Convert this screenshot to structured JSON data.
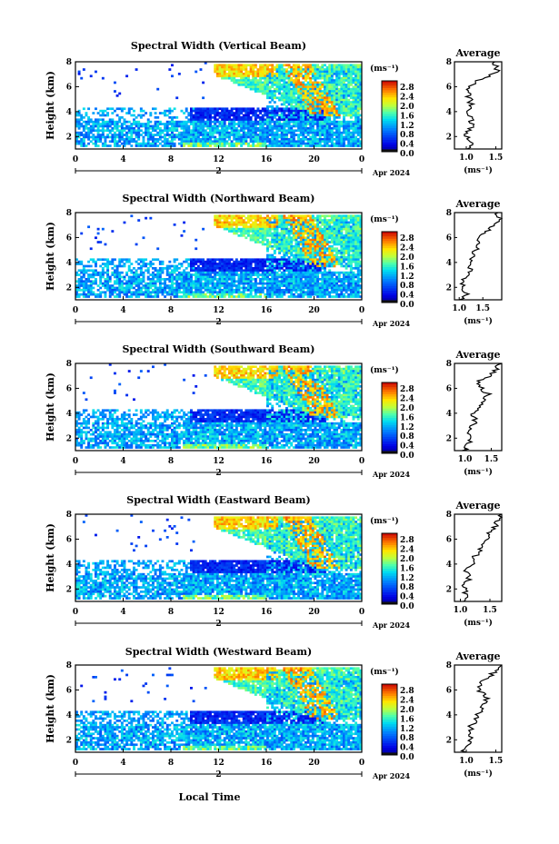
{
  "figure": {
    "xlabel": "Local Time",
    "date_label": "Apr 2024",
    "day_label": "2",
    "colorbar_unit": "(ms⁻¹)",
    "average_title": "Average"
  },
  "chart_data": [
    {
      "type": "heatmap",
      "title": "Spectral Width (Vertical Beam)",
      "ylabel": "Height (km)",
      "x_ticks": [
        "0",
        "4",
        "8",
        "12",
        "16",
        "20",
        "0"
      ],
      "y_ticks": [
        "2",
        "4",
        "6",
        "8"
      ],
      "xlim": [
        0,
        24
      ],
      "ylim": [
        1,
        8
      ],
      "colorbar_ticks": [
        "0.0",
        "0.4",
        "0.8",
        "1.2",
        "1.6",
        "2.0",
        "2.4",
        "2.8"
      ],
      "colorbar_range": [
        0.0,
        3.0
      ],
      "average_profile": {
        "xlim": [
          0.8,
          1.6
        ],
        "x_ticks": [
          "1.0",
          "1.5"
        ],
        "xlabel": "(ms⁻¹)",
        "ylim": [
          1,
          8
        ],
        "y_ticks": [
          "2",
          "4",
          "6",
          "8"
        ],
        "height": [
          1.0,
          1.5,
          2.0,
          2.5,
          3.0,
          3.5,
          4.0,
          4.5,
          5.0,
          5.5,
          6.0,
          6.5,
          7.0,
          7.5,
          8.0
        ],
        "value": [
          1.05,
          1.1,
          1.0,
          1.05,
          1.1,
          1.1,
          1.0,
          1.1,
          1.05,
          1.05,
          1.05,
          1.2,
          1.45,
          1.55,
          1.45
        ]
      }
    },
    {
      "type": "heatmap",
      "title": "Spectral Width (Northward Beam)",
      "ylabel": "Height (km)",
      "x_ticks": [
        "0",
        "4",
        "8",
        "12",
        "16",
        "20",
        "0"
      ],
      "y_ticks": [
        "2",
        "4",
        "6",
        "8"
      ],
      "xlim": [
        0,
        24
      ],
      "ylim": [
        1,
        8
      ],
      "colorbar_ticks": [
        "0.0",
        "0.4",
        "0.8",
        "1.2",
        "1.6",
        "2.0",
        "2.4",
        "2.8"
      ],
      "colorbar_range": [
        0.0,
        3.0
      ],
      "average_profile": {
        "xlim": [
          0.9,
          1.9
        ],
        "x_ticks": [
          "1.0",
          "1.5"
        ],
        "xlabel": "(ms⁻¹)",
        "ylim": [
          1,
          8
        ],
        "y_ticks": [
          "2",
          "4",
          "6",
          "8"
        ],
        "height": [
          1.0,
          1.5,
          2.0,
          2.5,
          3.0,
          3.5,
          4.0,
          4.5,
          5.0,
          5.5,
          6.0,
          6.5,
          7.0,
          7.5,
          8.0
        ],
        "value": [
          1.05,
          1.15,
          1.05,
          1.1,
          1.15,
          1.25,
          1.2,
          1.3,
          1.35,
          1.4,
          1.45,
          1.6,
          1.75,
          1.85,
          1.8
        ]
      }
    },
    {
      "type": "heatmap",
      "title": "Spectral Width (Southward Beam)",
      "ylabel": "Height (km)",
      "x_ticks": [
        "0",
        "4",
        "8",
        "12",
        "16",
        "20",
        "0"
      ],
      "y_ticks": [
        "2",
        "4",
        "6",
        "8"
      ],
      "xlim": [
        0,
        24
      ],
      "ylim": [
        1,
        8
      ],
      "colorbar_ticks": [
        "0.0",
        "0.4",
        "0.8",
        "1.2",
        "1.6",
        "2.0",
        "2.4",
        "2.8"
      ],
      "colorbar_range": [
        0.0,
        3.0
      ],
      "average_profile": {
        "xlim": [
          0.8,
          1.7
        ],
        "x_ticks": [
          "1.0",
          "1.5"
        ],
        "xlabel": "(ms⁻¹)",
        "ylim": [
          1,
          8
        ],
        "y_ticks": [
          "2",
          "4",
          "6",
          "8"
        ],
        "height": [
          1.0,
          1.5,
          2.0,
          2.5,
          3.0,
          3.5,
          4.0,
          4.5,
          5.0,
          5.5,
          6.0,
          6.5,
          7.0,
          7.5,
          8.0
        ],
        "value": [
          1.0,
          1.05,
          1.1,
          1.05,
          1.15,
          1.2,
          1.15,
          1.25,
          1.35,
          1.45,
          1.3,
          1.25,
          1.45,
          1.6,
          1.65
        ]
      }
    },
    {
      "type": "heatmap",
      "title": "Spectral Width (Eastward Beam)",
      "ylabel": "Height (km)",
      "x_ticks": [
        "0",
        "4",
        "8",
        "12",
        "16",
        "20",
        "0"
      ],
      "y_ticks": [
        "2",
        "4",
        "6",
        "8"
      ],
      "xlim": [
        0,
        24
      ],
      "ylim": [
        1,
        8
      ],
      "colorbar_ticks": [
        "0.0",
        "0.4",
        "0.8",
        "1.2",
        "1.6",
        "2.0",
        "2.4",
        "2.8"
      ],
      "colorbar_range": [
        0.0,
        3.0
      ],
      "average_profile": {
        "xlim": [
          0.9,
          1.7
        ],
        "x_ticks": [
          "1.0",
          "1.5"
        ],
        "xlabel": "(ms⁻¹)",
        "ylim": [
          1,
          8
        ],
        "y_ticks": [
          "2",
          "4",
          "6",
          "8"
        ],
        "height": [
          1.0,
          1.5,
          2.0,
          2.5,
          3.0,
          3.5,
          4.0,
          4.5,
          5.0,
          5.5,
          6.0,
          6.5,
          7.0,
          7.5,
          8.0
        ],
        "value": [
          1.0,
          1.1,
          1.05,
          1.1,
          1.15,
          1.1,
          1.2,
          1.25,
          1.3,
          1.35,
          1.45,
          1.5,
          1.6,
          1.65,
          1.7
        ]
      }
    },
    {
      "type": "heatmap",
      "title": "Spectral Width (Westward Beam)",
      "ylabel": "Height (km)",
      "x_ticks": [
        "0",
        "4",
        "8",
        "12",
        "16",
        "20",
        "0"
      ],
      "y_ticks": [
        "2",
        "4",
        "6",
        "8"
      ],
      "xlim": [
        0,
        24
      ],
      "ylim": [
        1,
        8
      ],
      "colorbar_ticks": [
        "0.0",
        "0.4",
        "0.8",
        "1.2",
        "1.6",
        "2.0",
        "2.4",
        "2.8"
      ],
      "colorbar_range": [
        0.0,
        3.0
      ],
      "average_profile": {
        "xlim": [
          0.8,
          1.6
        ],
        "x_ticks": [
          "1.0",
          "1.5"
        ],
        "xlabel": "(ms⁻¹)",
        "ylim": [
          1,
          8
        ],
        "y_ticks": [
          "2",
          "4",
          "6",
          "8"
        ],
        "height": [
          1.0,
          1.5,
          2.0,
          2.5,
          3.0,
          3.5,
          4.0,
          4.5,
          5.0,
          5.5,
          6.0,
          6.5,
          7.0,
          7.5,
          8.0
        ],
        "value": [
          0.95,
          1.0,
          1.05,
          1.1,
          1.05,
          1.15,
          1.2,
          1.25,
          1.3,
          1.35,
          1.2,
          1.25,
          1.35,
          1.5,
          1.6
        ]
      }
    }
  ]
}
